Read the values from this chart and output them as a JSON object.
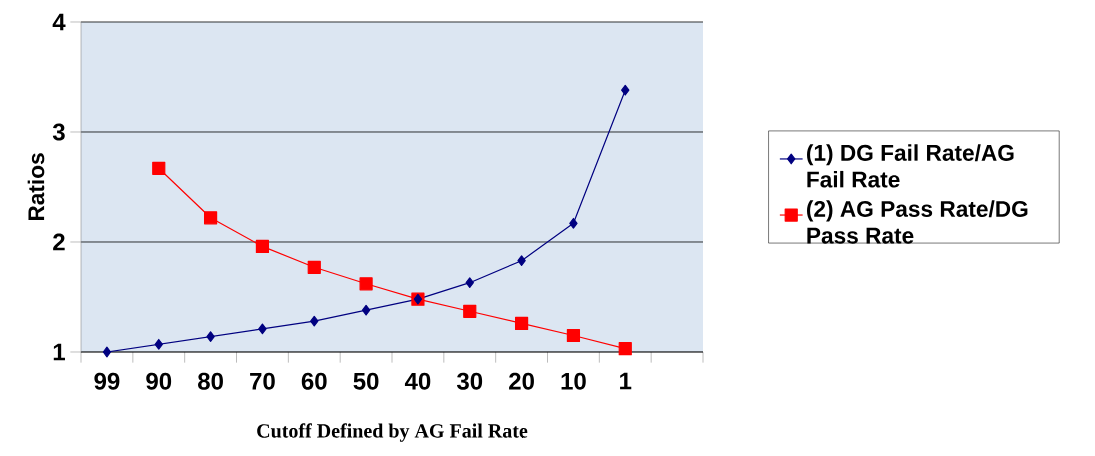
{
  "chart_data": {
    "type": "line",
    "xlabel": "Cutoff Defined by AG Fail Rate",
    "ylabel": "Ratios",
    "categories": [
      "99",
      "90",
      "80",
      "70",
      "60",
      "50",
      "40",
      "30",
      "20",
      "10",
      "1",
      null
    ],
    "series": [
      {
        "name": "(1) DG Fail Rate/AG Fail Rate",
        "color": "#000080",
        "marker": "diamond",
        "values": [
          1.0,
          1.07,
          1.14,
          1.21,
          1.28,
          1.38,
          1.48,
          1.63,
          1.83,
          2.17,
          3.38,
          null
        ]
      },
      {
        "name": "(2) AG Pass Rate/DG Pass Rate",
        "color": "#ff0000",
        "marker": "square",
        "values": [
          null,
          2.67,
          2.22,
          1.96,
          1.77,
          1.62,
          1.48,
          1.37,
          1.26,
          1.15,
          1.03,
          null
        ]
      }
    ],
    "ylim": [
      1,
      4
    ],
    "yticks": [
      1,
      2,
      3,
      4
    ],
    "grid": "y",
    "legend": "right",
    "line_style": "solid"
  }
}
